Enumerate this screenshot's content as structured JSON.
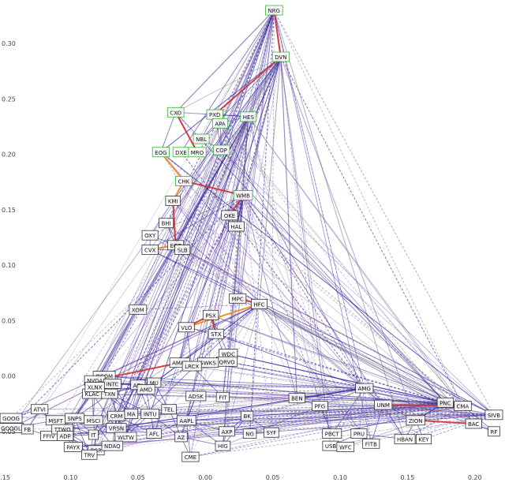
{
  "chart_data": {
    "type": "scatter",
    "title": "",
    "xlabel": "",
    "ylabel": "",
    "xlim": [
      -0.15,
      0.22
    ],
    "ylim": [
      -0.085,
      0.335
    ],
    "x_ticks": [
      -0.15,
      -0.1,
      -0.05,
      0.0,
      0.05,
      0.1,
      0.15,
      0.2
    ],
    "y_ticks": [
      0.3,
      0.25,
      0.2,
      0.15,
      0.1,
      0.05,
      0.0,
      -0.05
    ],
    "x_tick_labels": [
      "0.15",
      "0.10",
      "0.05",
      "0.00",
      "0.05",
      "0.10",
      "0.15",
      "0.20"
    ],
    "y_tick_labels": [
      "0.30",
      "0.25",
      "0.20",
      "0.15",
      "0.10",
      "0.05",
      "0.00",
      "0.05"
    ],
    "grid": false,
    "legend": "none",
    "colors": {
      "edge_blue": "#2a20a0",
      "edge_purple": "#6a3aa8",
      "edge_gray": "#8a8aa0",
      "edge_red": "#d03030",
      "edge_orange": "#f08a10",
      "label_border": "#333333",
      "label_border_green": "#2fb02f"
    },
    "points": [
      {
        "label": "NRG",
        "x": 0.051,
        "y": 0.33,
        "border": "green"
      },
      {
        "label": "DVN",
        "x": 0.056,
        "y": 0.288,
        "border": "green"
      },
      {
        "label": "CXO",
        "x": -0.022,
        "y": 0.238,
        "border": "green"
      },
      {
        "label": "PXD",
        "x": 0.007,
        "y": 0.236,
        "border": "green"
      },
      {
        "label": "HES",
        "x": 0.032,
        "y": 0.234,
        "border": "green"
      },
      {
        "label": "APA",
        "x": 0.011,
        "y": 0.228,
        "border": "green"
      },
      {
        "label": "NBL",
        "x": -0.003,
        "y": 0.214,
        "border": "green"
      },
      {
        "label": "EOG",
        "x": -0.033,
        "y": 0.202,
        "border": "green"
      },
      {
        "label": "DXE",
        "x": -0.018,
        "y": 0.202,
        "border": "green"
      },
      {
        "label": "MRO",
        "x": -0.006,
        "y": 0.202,
        "border": "green"
      },
      {
        "label": "COP",
        "x": 0.012,
        "y": 0.204,
        "border": "green"
      },
      {
        "label": "CHK",
        "x": -0.016,
        "y": 0.176,
        "border": "green"
      },
      {
        "label": "WMB",
        "x": 0.028,
        "y": 0.163,
        "border": "green"
      },
      {
        "label": "KMI",
        "x": -0.024,
        "y": 0.158,
        "border": "dark"
      },
      {
        "label": "OKE",
        "x": 0.018,
        "y": 0.145,
        "border": "dark"
      },
      {
        "label": "HAL",
        "x": 0.023,
        "y": 0.135,
        "border": "dark"
      },
      {
        "label": "BHI",
        "x": -0.029,
        "y": 0.138,
        "border": "dark"
      },
      {
        "label": "OXY",
        "x": -0.041,
        "y": 0.127,
        "border": "dark"
      },
      {
        "label": "EQT",
        "x": -0.022,
        "y": 0.118,
        "border": "dark"
      },
      {
        "label": "CVX",
        "x": -0.041,
        "y": 0.114,
        "border": "dark"
      },
      {
        "label": "SLB",
        "x": -0.017,
        "y": 0.114,
        "border": "dark"
      },
      {
        "label": "XOM",
        "x": -0.05,
        "y": 0.06,
        "border": "dark"
      },
      {
        "label": "MPC",
        "x": 0.024,
        "y": 0.07,
        "border": "dark"
      },
      {
        "label": "HFC",
        "x": 0.04,
        "y": 0.065,
        "border": "dark"
      },
      {
        "label": "PSX",
        "x": 0.004,
        "y": 0.055,
        "border": "dark"
      },
      {
        "label": "VLO",
        "x": -0.014,
        "y": 0.044,
        "border": "dark"
      },
      {
        "label": "STX",
        "x": 0.008,
        "y": 0.038,
        "border": "dark"
      },
      {
        "label": "WDC",
        "x": 0.017,
        "y": 0.02,
        "border": "dark"
      },
      {
        "label": "QRVO",
        "x": 0.016,
        "y": 0.013,
        "border": "dark"
      },
      {
        "label": "SWKS",
        "x": 0.002,
        "y": 0.012,
        "border": "dark"
      },
      {
        "label": "AMAT",
        "x": -0.019,
        "y": 0.012,
        "border": "dark"
      },
      {
        "label": "LRCX",
        "x": -0.01,
        "y": 0.009,
        "border": "dark"
      },
      {
        "label": "QCOM",
        "x": -0.075,
        "y": 0.0,
        "border": "dark"
      },
      {
        "label": "NVDA",
        "x": -0.082,
        "y": -0.004,
        "border": "dark"
      },
      {
        "label": "INTC",
        "x": -0.069,
        "y": -0.007,
        "border": "dark"
      },
      {
        "label": "KLAC",
        "x": -0.084,
        "y": -0.016,
        "border": "dark"
      },
      {
        "label": "TXN",
        "x": -0.071,
        "y": -0.016,
        "border": "dark"
      },
      {
        "label": "ADI",
        "x": -0.05,
        "y": -0.008,
        "border": "dark"
      },
      {
        "label": "MU",
        "x": -0.038,
        "y": -0.006,
        "border": "dark"
      },
      {
        "label": "ADSK",
        "x": -0.007,
        "y": -0.018,
        "border": "dark"
      },
      {
        "label": "FIT",
        "x": 0.013,
        "y": -0.019,
        "border": "dark"
      },
      {
        "label": "XLNX",
        "x": -0.082,
        "y": -0.01,
        "border": "dark"
      },
      {
        "label": "AMD",
        "x": -0.044,
        "y": -0.012,
        "border": "dark"
      },
      {
        "label": "ATVI",
        "x": -0.123,
        "y": -0.03,
        "border": "dark"
      },
      {
        "label": "MSFT",
        "x": -0.111,
        "y": -0.04,
        "border": "dark"
      },
      {
        "label": "SNPS",
        "x": -0.097,
        "y": -0.038,
        "border": "dark"
      },
      {
        "label": "MSCI",
        "x": -0.083,
        "y": -0.04,
        "border": "dark"
      },
      {
        "label": "CRM",
        "x": -0.066,
        "y": -0.036,
        "border": "dark"
      },
      {
        "label": "MA",
        "x": -0.055,
        "y": -0.034,
        "border": "dark"
      },
      {
        "label": "INTU",
        "x": -0.041,
        "y": -0.034,
        "border": "dark"
      },
      {
        "label": "TEL",
        "x": -0.027,
        "y": -0.03,
        "border": "dark"
      },
      {
        "label": "AAPL",
        "x": -0.014,
        "y": -0.04,
        "border": "dark"
      },
      {
        "label": "GOOG",
        "x": -0.153,
        "y": -0.038,
        "border": "dark"
      },
      {
        "label": "GOOGL",
        "x": -0.152,
        "y": -0.047,
        "border": "dark"
      },
      {
        "label": "FB",
        "x": -0.132,
        "y": -0.048,
        "border": "dark"
      },
      {
        "label": "FFIV",
        "x": -0.116,
        "y": -0.054,
        "border": "dark"
      },
      {
        "label": "TTWO",
        "x": -0.106,
        "y": -0.048,
        "border": "dark"
      },
      {
        "label": "ADP",
        "x": -0.104,
        "y": -0.054,
        "border": "dark"
      },
      {
        "label": "IT",
        "x": -0.083,
        "y": -0.053,
        "border": "dark"
      },
      {
        "label": "VRSN",
        "x": -0.066,
        "y": -0.047,
        "border": "dark"
      },
      {
        "label": "WLTW",
        "x": -0.059,
        "y": -0.055,
        "border": "dark"
      },
      {
        "label": "AFL",
        "x": -0.038,
        "y": -0.052,
        "border": "dark"
      },
      {
        "label": "AZ",
        "x": -0.018,
        "y": -0.055,
        "border": "dark"
      },
      {
        "label": "PAYX",
        "x": -0.098,
        "y": -0.064,
        "border": "dark"
      },
      {
        "label": "PGR",
        "x": -0.081,
        "y": -0.067,
        "border": "dark"
      },
      {
        "label": "NDAQ",
        "x": -0.069,
        "y": -0.063,
        "border": "dark"
      },
      {
        "label": "TRV",
        "x": -0.086,
        "y": -0.071,
        "border": "dark"
      },
      {
        "label": "AXP",
        "x": 0.016,
        "y": -0.05,
        "border": "dark"
      },
      {
        "label": "NG",
        "x": 0.033,
        "y": -0.052,
        "border": "dark"
      },
      {
        "label": "SYF",
        "x": 0.049,
        "y": -0.051,
        "border": "dark"
      },
      {
        "label": "HIG",
        "x": 0.013,
        "y": -0.063,
        "border": "dark"
      },
      {
        "label": "CME",
        "x": -0.011,
        "y": -0.073,
        "border": "dark"
      },
      {
        "label": "BK",
        "x": 0.031,
        "y": -0.036,
        "border": "dark"
      },
      {
        "label": "BEN",
        "x": 0.068,
        "y": -0.02,
        "border": "dark"
      },
      {
        "label": "PFG",
        "x": 0.085,
        "y": -0.027,
        "border": "dark"
      },
      {
        "label": "AMG",
        "x": 0.118,
        "y": -0.011,
        "border": "dark"
      },
      {
        "label": "UNM",
        "x": 0.132,
        "y": -0.026,
        "border": "dark"
      },
      {
        "label": "PNC",
        "x": 0.178,
        "y": -0.024,
        "border": "dark"
      },
      {
        "label": "CMA",
        "x": 0.191,
        "y": -0.027,
        "border": "dark"
      },
      {
        "label": "SIVB",
        "x": 0.241,
        "y": -0.035,
        "border": "dark"
      },
      {
        "label": "BAC",
        "x": 0.199,
        "y": -0.043,
        "border": "dark"
      },
      {
        "label": "RF",
        "x": 0.231,
        "y": -0.05,
        "border": "dark"
      },
      {
        "label": "HBAN",
        "x": 0.148,
        "y": -0.057,
        "border": "dark"
      },
      {
        "label": "KEY",
        "x": 0.162,
        "y": -0.057,
        "border": "dark"
      },
      {
        "label": "FITB",
        "x": 0.123,
        "y": -0.061,
        "border": "dark"
      },
      {
        "label": "PRU",
        "x": 0.114,
        "y": -0.052,
        "border": "dark"
      },
      {
        "label": "PBCT",
        "x": 0.094,
        "y": -0.052,
        "border": "dark"
      },
      {
        "label": "USB",
        "x": 0.093,
        "y": -0.063,
        "border": "dark"
      },
      {
        "label": "WFC",
        "x": 0.104,
        "y": -0.064,
        "border": "dark"
      },
      {
        "label": "ZION",
        "x": 0.156,
        "y": -0.04,
        "border": "dark"
      }
    ],
    "highlight_edges": [
      {
        "a": "NRG",
        "b": "DVN",
        "color": "red"
      },
      {
        "a": "DVN",
        "b": "PXD",
        "color": "red"
      },
      {
        "a": "CXO",
        "b": "MRO",
        "color": "red"
      },
      {
        "a": "EOG",
        "b": "CHK",
        "color": "orange"
      },
      {
        "a": "CHK",
        "b": "KMI",
        "color": "orange"
      },
      {
        "a": "CHK",
        "b": "WMB",
        "color": "red"
      },
      {
        "a": "WMB",
        "b": "OKE",
        "color": "red"
      },
      {
        "a": "KMI",
        "b": "EQT",
        "color": "red"
      },
      {
        "a": "EQT",
        "b": "CVX",
        "color": "orange"
      },
      {
        "a": "MPC",
        "b": "HFC",
        "color": "red"
      },
      {
        "a": "HFC",
        "b": "VLO",
        "color": "orange"
      },
      {
        "a": "VLO",
        "b": "PSX",
        "color": "red"
      },
      {
        "a": "PSX",
        "b": "STX",
        "color": "red"
      },
      {
        "a": "WDC",
        "b": "QRVO",
        "color": "red"
      },
      {
        "a": "QRVO",
        "b": "AMAT",
        "color": "orange"
      },
      {
        "a": "AMAT",
        "b": "NVDA",
        "color": "red"
      },
      {
        "a": "PNC",
        "b": "CMA",
        "color": "red"
      },
      {
        "a": "CMA",
        "b": "UNM",
        "color": "red"
      },
      {
        "a": "BAC",
        "b": "ZION",
        "color": "red"
      }
    ]
  }
}
